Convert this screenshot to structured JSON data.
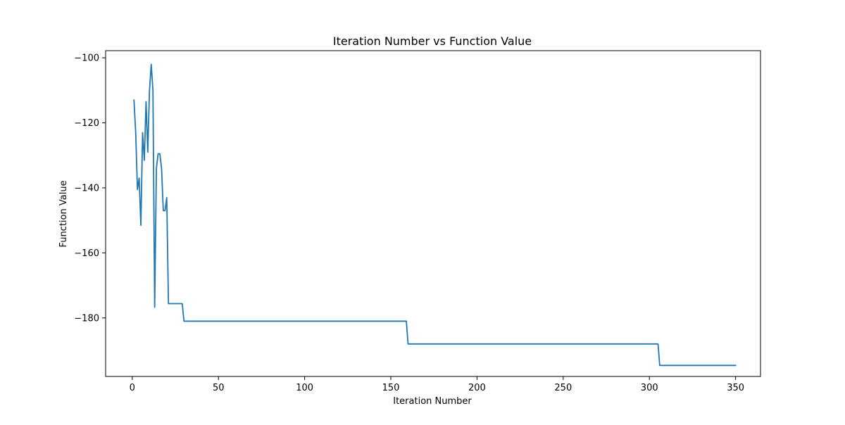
{
  "chart_data": {
    "type": "line",
    "title": "Iteration Number vs Function Value",
    "xlabel": "Iteration Number",
    "ylabel": "Function Value",
    "xlim": [
      -15.45,
      364.45
    ],
    "ylim": [
      -198.0,
      -97.8
    ],
    "x_ticks": [
      0,
      50,
      100,
      150,
      200,
      250,
      300,
      350
    ],
    "y_ticks": [
      -180,
      -160,
      -140,
      -120,
      -100
    ],
    "grid": false,
    "legend": "none",
    "colors": {
      "line": "#1f77b4",
      "axes": "#000000",
      "background": "#ffffff"
    },
    "series": [
      {
        "x": [
          1,
          2,
          3,
          4,
          5,
          6,
          7,
          8,
          9,
          10,
          11,
          12,
          13,
          14,
          15,
          16,
          17,
          18,
          19,
          20,
          21,
          29,
          30,
          159,
          160,
          305,
          306,
          350
        ],
        "y": [
          -113,
          -123,
          -140.5,
          -137,
          -151.5,
          -123,
          -131.5,
          -113.5,
          -129,
          -110,
          -102,
          -110,
          -176.7,
          -134,
          -129.5,
          -129.5,
          -134,
          -147,
          -147,
          -143,
          -175.6,
          -175.6,
          -181,
          -181,
          -188,
          -188,
          -194.6,
          -194.6
        ]
      }
    ]
  }
}
